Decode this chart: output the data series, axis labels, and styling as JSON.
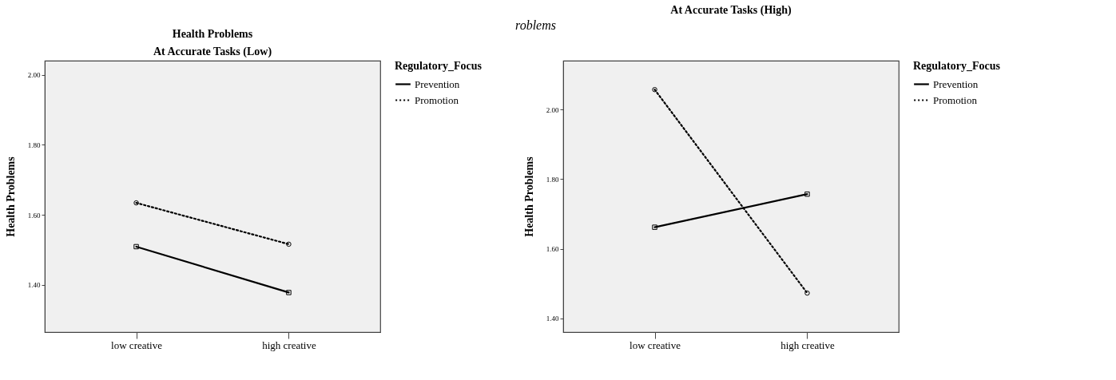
{
  "chart_data": [
    {
      "type": "line",
      "title": "Health Problems",
      "subtitle": "At Accurate Tasks (Low)",
      "ylabel": "Health Problems",
      "legend_title": "Regulatory_Focus",
      "categories": [
        "low creative",
        "high creative"
      ],
      "series": [
        {
          "name": "Prevention",
          "color": "#000000",
          "values": [
            1.509,
            1.378
          ],
          "marker": "square",
          "line_style": "solid"
        },
        {
          "name": "Promotion",
          "color": "#000000",
          "values": [
            1.634,
            1.516
          ],
          "marker": "circle",
          "line_style": "dotted"
        }
      ],
      "ylim": [
        1.265,
        2.04
      ],
      "yticks": [
        {
          "value": 1.4,
          "label": "1.40"
        },
        {
          "value": 1.6,
          "label": "1.60"
        },
        {
          "value": 1.8,
          "label": "1.80"
        },
        {
          "value": 2.0,
          "label": "2.00"
        }
      ],
      "legend": "right",
      "grid": false
    },
    {
      "type": "line",
      "title": "At Accurate Tasks (High)",
      "ylabel": "Health Problems",
      "legend_title": "Regulatory_Focus",
      "categories": [
        "low creative",
        "high creative"
      ],
      "series": [
        {
          "name": "Prevention",
          "color": "#000000",
          "values": [
            1.662,
            1.757
          ],
          "marker": "square",
          "line_style": "solid"
        },
        {
          "name": "Promotion",
          "color": "#000000",
          "values": [
            2.057,
            1.473
          ],
          "marker": "circle",
          "line_style": "dotted"
        }
      ],
      "ylim": [
        1.361,
        2.14
      ],
      "yticks": [
        {
          "value": 1.4,
          "label": "1.40"
        },
        {
          "value": 1.6,
          "label": "1.60"
        },
        {
          "value": 1.8,
          "label": "1.80"
        },
        {
          "value": 2.0,
          "label": "2.00"
        }
      ],
      "legend": "right",
      "grid": false,
      "annotations": [
        "roblems"
      ]
    }
  ]
}
